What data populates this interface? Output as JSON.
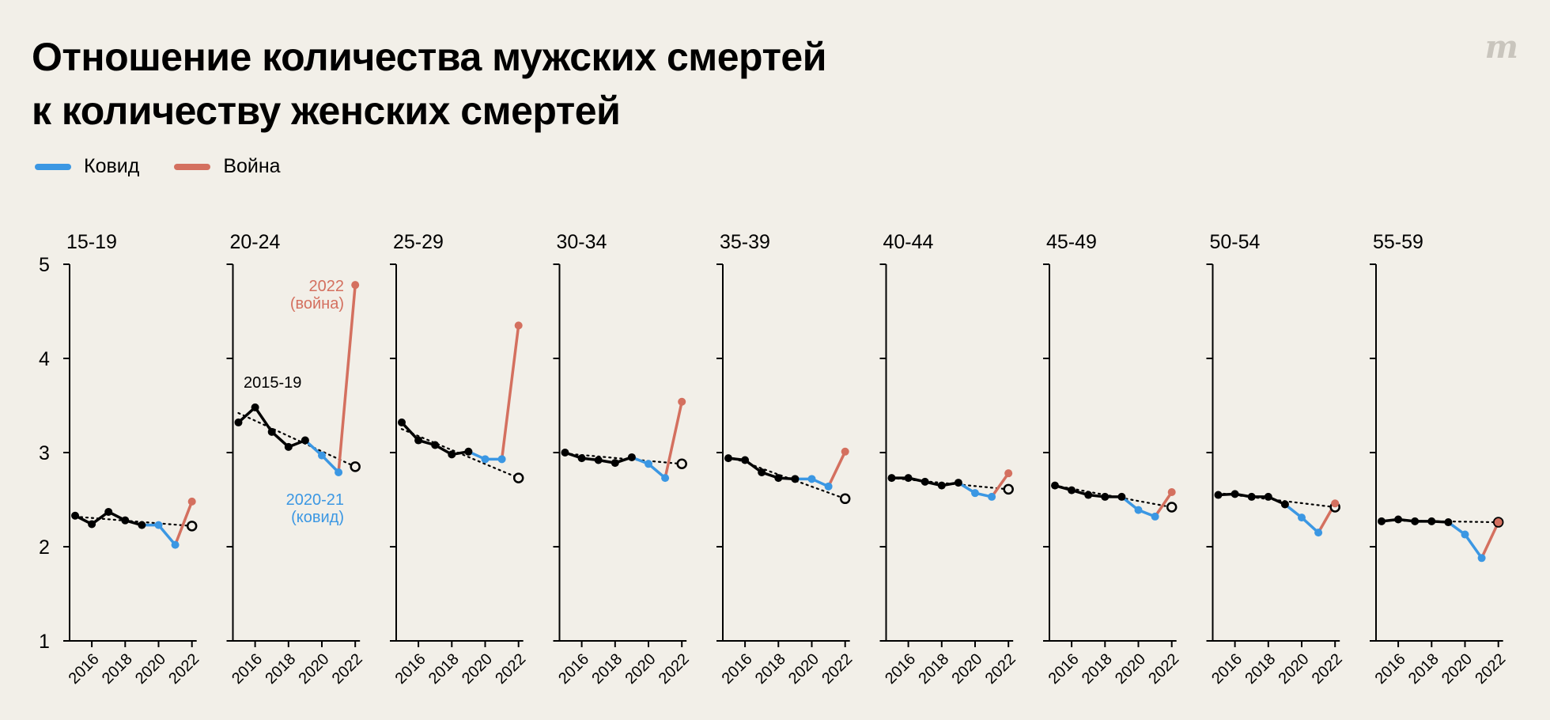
{
  "header": {
    "title_line1": "Отношение количества мужских смертей",
    "title_line2": "к количеству женских смертей",
    "logo": "m"
  },
  "legend": [
    {
      "label": "Ковид",
      "color": "#3b97e3"
    },
    {
      "label": "Война",
      "color": "#d4705f"
    }
  ],
  "colors": {
    "baseline": "#000000",
    "covid": "#3b97e3",
    "war": "#d4705f",
    "background": "#f2efe8"
  },
  "chart_data": {
    "type": "line",
    "title": "Отношение количества мужских смертей к количеству женских смертей",
    "ylim": [
      1,
      5
    ],
    "yticks": [
      1,
      2,
      3,
      4,
      5
    ],
    "xlim": [
      2015,
      2022
    ],
    "xticks": [
      2016,
      2018,
      2020,
      2022
    ],
    "x": [
      2015,
      2016,
      2017,
      2018,
      2019,
      2020,
      2021,
      2022
    ],
    "series_segments": {
      "baseline_years": [
        2015,
        2019
      ],
      "covid_years": [
        2019,
        2021
      ],
      "war_years": [
        2021,
        2022
      ]
    },
    "annotations": [
      {
        "panel": "20-24",
        "text": "2015-19",
        "color": "#000000"
      },
      {
        "panel": "20-24",
        "text_line1": "2022",
        "text_line2": "(война)",
        "color": "#d4705f"
      },
      {
        "panel": "20-24",
        "text_line1": "2020-21",
        "text_line2": "(ковид)",
        "color": "#3b97e3"
      }
    ],
    "panels": [
      {
        "label": "15-19",
        "values": [
          2.33,
          2.24,
          2.37,
          2.28,
          2.23,
          2.23,
          2.02,
          2.48
        ],
        "trend": [
          2.32,
          2.22
        ]
      },
      {
        "label": "20-24",
        "values": [
          3.32,
          3.48,
          3.22,
          3.06,
          3.13,
          2.97,
          2.79,
          4.78
        ],
        "trend": [
          3.42,
          2.85
        ]
      },
      {
        "label": "25-29",
        "values": [
          3.32,
          3.13,
          3.08,
          2.98,
          3.01,
          2.93,
          2.93,
          4.35
        ],
        "trend": [
          3.25,
          2.73
        ]
      },
      {
        "label": "30-34",
        "values": [
          3.0,
          2.94,
          2.92,
          2.89,
          2.95,
          2.88,
          2.73,
          3.54
        ],
        "trend": [
          2.99,
          2.88
        ]
      },
      {
        "label": "35-39",
        "values": [
          2.94,
          2.92,
          2.79,
          2.73,
          2.72,
          2.72,
          2.64,
          3.01
        ],
        "trend": [
          2.96,
          2.51
        ]
      },
      {
        "label": "40-44",
        "values": [
          2.73,
          2.73,
          2.69,
          2.65,
          2.68,
          2.57,
          2.53,
          2.78
        ],
        "trend": [
          2.73,
          2.61
        ]
      },
      {
        "label": "45-49",
        "values": [
          2.65,
          2.6,
          2.55,
          2.53,
          2.53,
          2.39,
          2.32,
          2.58
        ],
        "trend": [
          2.65,
          2.42
        ]
      },
      {
        "label": "50-54",
        "values": [
          2.55,
          2.56,
          2.53,
          2.53,
          2.45,
          2.31,
          2.15,
          2.46
        ],
        "trend": [
          2.57,
          2.42
        ]
      },
      {
        "label": "55-59",
        "values": [
          2.27,
          2.29,
          2.27,
          2.27,
          2.26,
          2.13,
          1.88,
          2.26
        ],
        "trend": [
          2.28,
          2.26
        ]
      }
    ]
  }
}
